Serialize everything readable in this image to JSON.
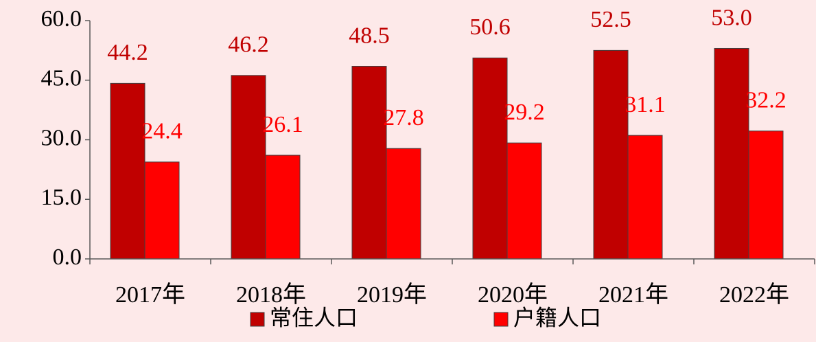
{
  "chart_data": {
    "type": "bar",
    "categories": [
      "2017年",
      "2018年",
      "2019年",
      "2020年",
      "2021年",
      "2022年"
    ],
    "series": [
      {
        "name": "常住人口",
        "color": "#c00000",
        "values": [
          44.2,
          46.2,
          48.5,
          50.6,
          52.5,
          53.0
        ],
        "value_labels": [
          "44.2",
          "46.2",
          "48.5",
          "50.6",
          "52.5",
          "53.0"
        ],
        "label_color": "#c00000"
      },
      {
        "name": "户籍人口",
        "color": "#ff0000",
        "values": [
          24.4,
          26.1,
          27.8,
          29.2,
          31.1,
          32.2
        ],
        "label_color": "#ff0000"
      }
    ],
    "ylim": [
      0,
      60
    ],
    "yticks": [
      {
        "value": 0,
        "label": "0.0"
      },
      {
        "value": 15,
        "label": "15.0"
      },
      {
        "value": 30,
        "label": "30.0"
      },
      {
        "value": 45,
        "label": "45.0"
      },
      {
        "value": 60,
        "label": "60.0"
      }
    ],
    "grid": false,
    "legend": "bottom"
  }
}
